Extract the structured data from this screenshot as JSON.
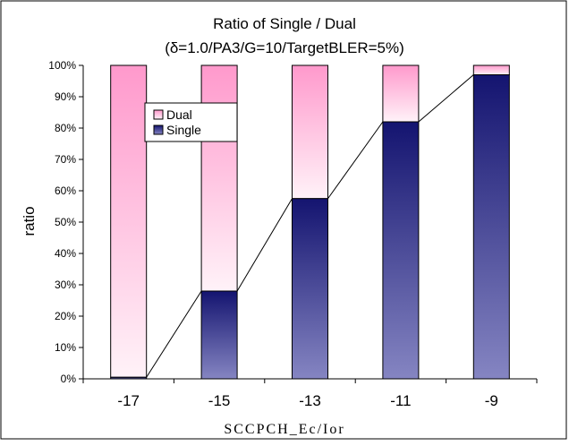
{
  "chart_data": {
    "type": "bar",
    "stacked": true,
    "title": "Ratio of Single / Dual",
    "subtitle": "(δ=1.0/PA3/G=10/TargetBLER=5%)",
    "xlabel": "SCCPCH_Ec/Ior",
    "ylabel": "ratio",
    "categories": [
      "-17",
      "-15",
      "-13",
      "-11",
      "-9"
    ],
    "series": [
      {
        "name": "Single",
        "values": [
          0.5,
          28,
          57.5,
          82,
          97
        ],
        "color": "#1a1a7a"
      },
      {
        "name": "Dual",
        "values": [
          99.5,
          72,
          42.5,
          18,
          3
        ],
        "color": "#ff99cc"
      }
    ],
    "trend_line": {
      "series": "Single",
      "values": [
        0.5,
        28,
        57.5,
        82,
        97
      ]
    },
    "ylim": [
      0,
      100
    ],
    "y_ticks": [
      "0%",
      "10%",
      "20%",
      "30%",
      "40%",
      "50%",
      "60%",
      "70%",
      "80%",
      "90%",
      "100%"
    ],
    "legend": {
      "entries": [
        "Dual",
        "Single"
      ],
      "placement": "top-left"
    },
    "grid": false
  }
}
